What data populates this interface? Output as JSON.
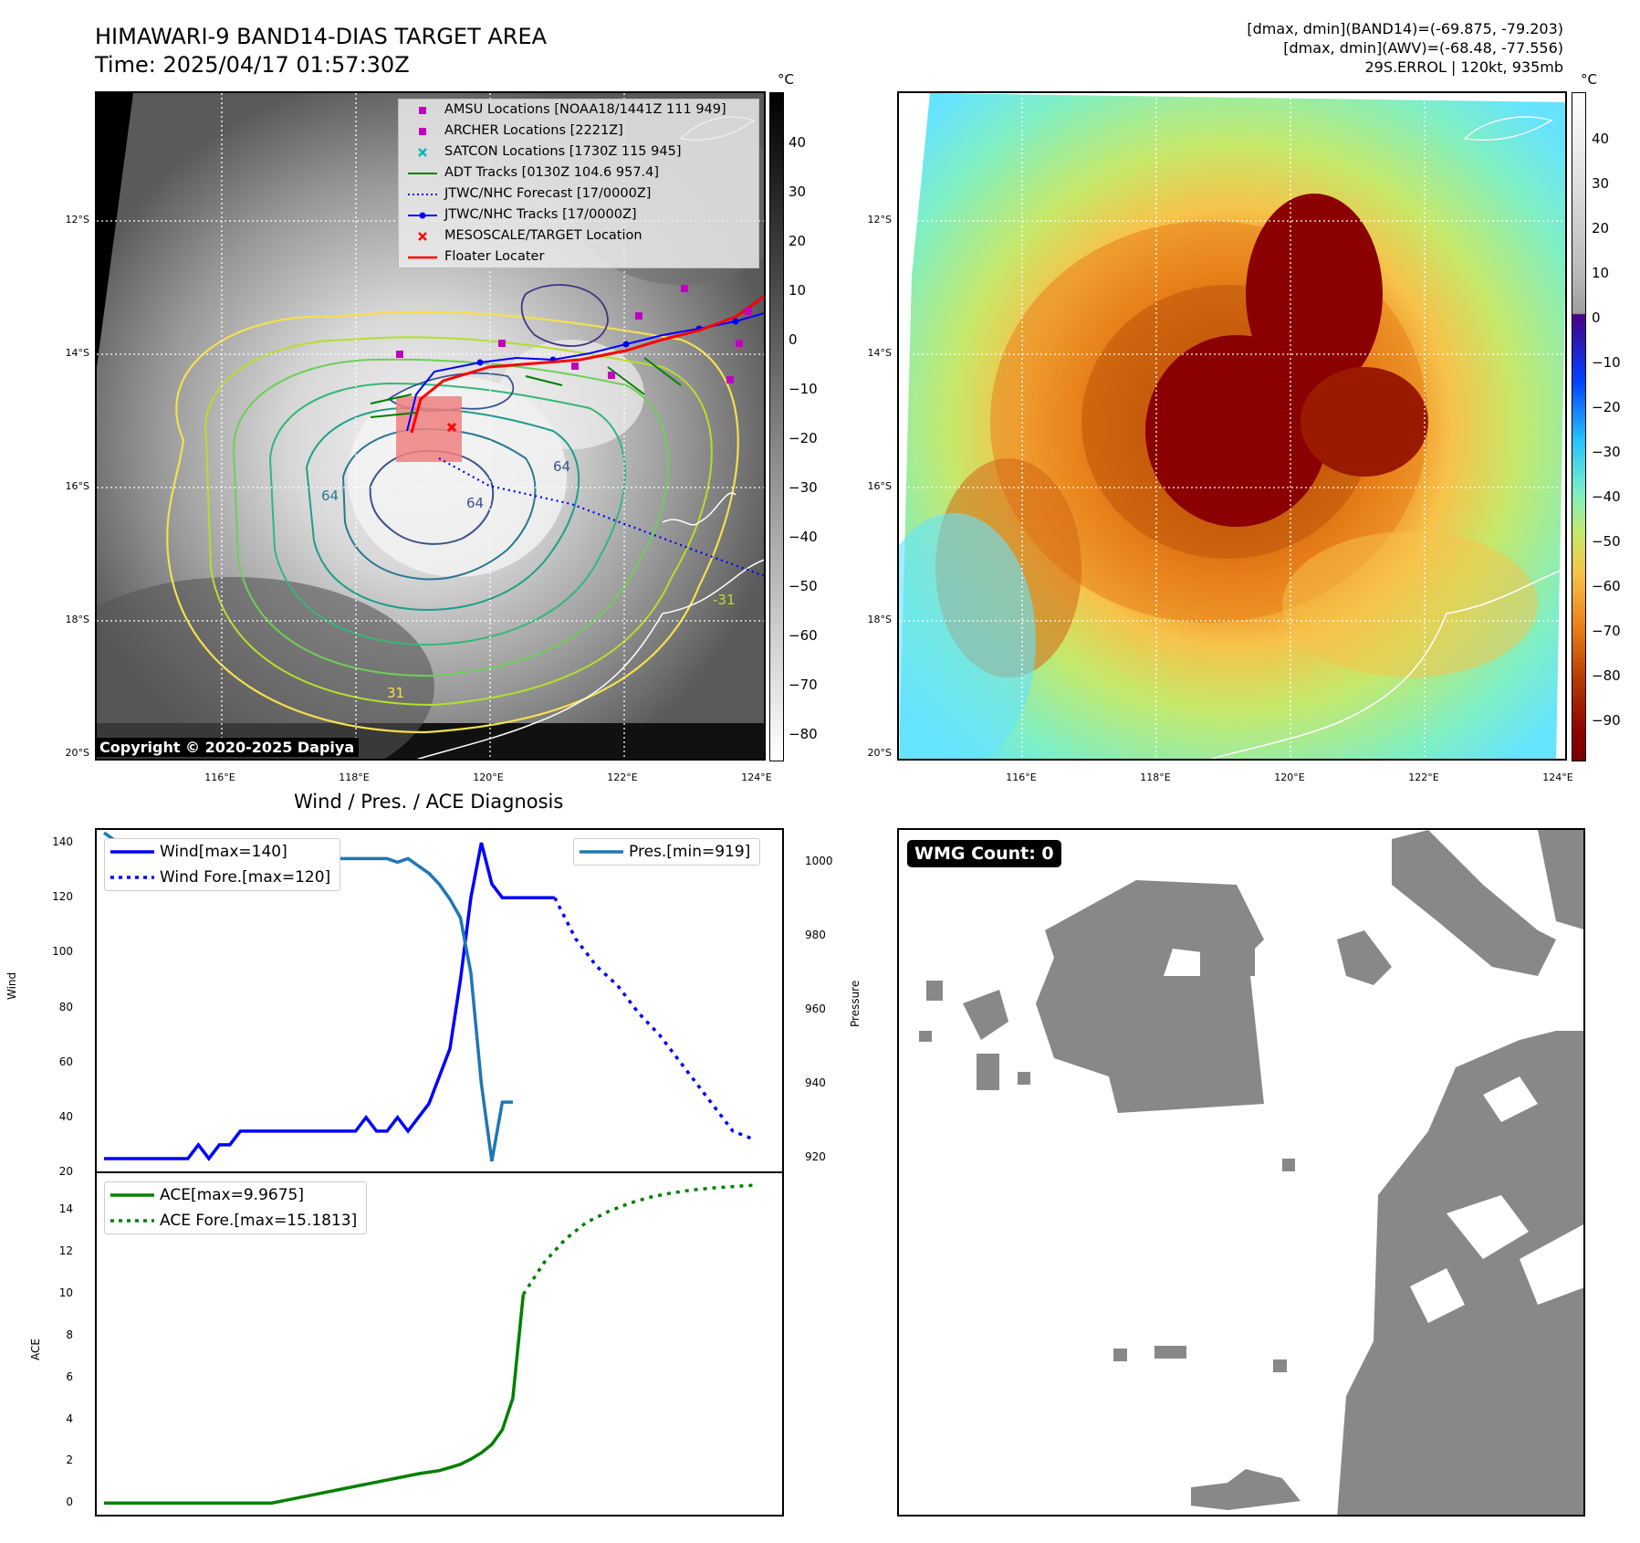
{
  "header": {
    "title": "HIMAWARI-9 BAND14-DIAS TARGET AREA",
    "time": "Time: 2025/04/17 01:57:30Z",
    "stats_band14": "[dmax, dmin](BAND14)=(-69.875, -79.203)",
    "stats_awv": "[dmax, dmin](AWV)=(-68.48, -77.556)",
    "storm": "29S.ERROL | 120kt, 935mb"
  },
  "map": {
    "lat_labels": [
      "12°S",
      "14°S",
      "16°S",
      "18°S",
      "20°S"
    ],
    "lon_labels": [
      "116°E",
      "118°E",
      "120°E",
      "122°E",
      "124°E"
    ],
    "copyright": "Copyright © 2020-2025 Dapiya",
    "contour_labels": [
      "64",
      "64",
      "64",
      "-31",
      "31"
    ],
    "legend": [
      {
        "label": "AMSU Locations [NOAA18/1441Z 111 949]",
        "marker": "square",
        "color": "#c000c0"
      },
      {
        "label": "ARCHER Locations [2221Z]",
        "marker": "square",
        "color": "#c000c0"
      },
      {
        "label": "SATCON Locations [1730Z 115 945]",
        "marker": "x",
        "color": "#00b5b5"
      },
      {
        "label": "ADT Tracks [0130Z 104.6 957.4]",
        "marker": "line",
        "color": "#008000"
      },
      {
        "label": "JTWC/NHC Forecast [17/0000Z]",
        "marker": "dotted",
        "color": "#0000ff"
      },
      {
        "label": "JTWC/NHC Tracks [17/0000Z]",
        "marker": "linedot",
        "color": "#0000ff"
      },
      {
        "label": "MESOSCALE/TARGET Location",
        "marker": "x",
        "color": "#ff0000"
      },
      {
        "label": "Floater Locater",
        "marker": "line",
        "color": "#ff0000"
      }
    ]
  },
  "colorbar_left": {
    "unit": "°C",
    "ticks": [
      "40",
      "30",
      "20",
      "10",
      "0",
      "−10",
      "−20",
      "−30",
      "−40",
      "−50",
      "−60",
      "−70",
      "−80"
    ]
  },
  "colorbar_right": {
    "unit": "°C",
    "ticks": [
      "40",
      "30",
      "20",
      "10",
      "0",
      "−10",
      "−20",
      "−30",
      "−40",
      "−50",
      "−60",
      "−70",
      "−80",
      "−90"
    ]
  },
  "wmg": {
    "label": "WMG Count: 0"
  },
  "chart_data": [
    {
      "type": "line",
      "title": "Wind / Pres. / ACE Diagnosis",
      "ylabel": "Wind",
      "ylabel2": "Pressure",
      "ylim": [
        20,
        145
      ],
      "ylim2": [
        916,
        1009
      ],
      "yticks": [
        20,
        40,
        60,
        80,
        100,
        120,
        140
      ],
      "yticks2": [
        920,
        940,
        960,
        980,
        1000
      ],
      "series": [
        {
          "name": "Wind[max=140]",
          "color": "#0000ff",
          "style": "solid",
          "x": [
            0,
            1,
            2,
            3,
            4,
            5,
            6,
            7,
            8,
            9,
            10,
            11,
            12,
            13,
            14,
            15,
            16,
            17,
            18,
            19,
            20,
            21,
            22,
            23,
            24,
            25,
            26,
            27,
            28,
            29,
            30,
            31,
            32,
            33,
            34,
            35,
            36,
            37,
            38,
            39,
            40,
            41,
            42,
            43
          ],
          "values": [
            25,
            25,
            25,
            25,
            25,
            25,
            25,
            25,
            25,
            30,
            25,
            30,
            30,
            35,
            35,
            35,
            35,
            35,
            35,
            35,
            35,
            35,
            35,
            35,
            35,
            40,
            35,
            35,
            40,
            35,
            40,
            45,
            55,
            65,
            90,
            120,
            140,
            125,
            120,
            120,
            120,
            120,
            120,
            120
          ]
        },
        {
          "name": "Wind Fore.[max=120]",
          "color": "#0000ff",
          "style": "dotted",
          "x": [
            43,
            45,
            47,
            49,
            51,
            53,
            55,
            57,
            58,
            59,
            60,
            62
          ],
          "values": [
            120,
            105,
            95,
            88,
            78,
            70,
            60,
            50,
            45,
            40,
            35,
            32
          ]
        },
        {
          "name": "Pres.[min=919]",
          "color": "#1f77b4",
          "style": "solid",
          "axis": "right",
          "x": [
            0,
            1,
            2,
            3,
            4,
            5,
            6,
            7,
            8,
            9,
            10,
            11,
            12,
            13,
            14,
            15,
            16,
            17,
            18,
            19,
            20,
            21,
            22,
            23,
            24,
            25,
            26,
            27,
            28,
            29,
            30,
            31,
            32,
            33,
            34,
            35,
            36,
            37,
            38,
            39
          ],
          "values": [
            1008,
            1006,
            1006,
            1005,
            1005,
            1003,
            1002,
            1002,
            1001,
            1001,
            1001,
            1001,
            1001,
            1001,
            1001,
            1001,
            1001,
            1001,
            1001,
            1001,
            1001,
            1001,
            1001,
            1001,
            1001,
            1001,
            1001,
            1001,
            1000,
            1001,
            999,
            997,
            994,
            990,
            985,
            970,
            940,
            919,
            935,
            935
          ]
        }
      ]
    },
    {
      "type": "line",
      "ylabel": "ACE",
      "ylim": [
        -0.6,
        15.8
      ],
      "yticks": [
        0,
        2,
        4,
        6,
        8,
        10,
        12,
        14
      ],
      "series": [
        {
          "name": "ACE[max=9.9675]",
          "color": "#008000",
          "style": "solid",
          "x": [
            0,
            5,
            10,
            14,
            16,
            18,
            20,
            22,
            24,
            26,
            28,
            30,
            32,
            33,
            34,
            35,
            36,
            37,
            38,
            39,
            40
          ],
          "values": [
            0,
            0,
            0,
            0,
            0,
            0.2,
            0.4,
            0.6,
            0.8,
            1.0,
            1.2,
            1.4,
            1.55,
            1.7,
            1.85,
            2.1,
            2.4,
            2.8,
            3.5,
            5.0,
            9.9675
          ]
        },
        {
          "name": "ACE Fore.[max=15.1813]",
          "color": "#008000",
          "style": "dotted",
          "x": [
            40,
            42,
            44,
            46,
            48,
            50,
            52,
            54,
            56,
            58,
            60,
            62
          ],
          "values": [
            9.9675,
            11.5,
            12.6,
            13.4,
            13.9,
            14.3,
            14.6,
            14.8,
            14.95,
            15.05,
            15.12,
            15.1813
          ]
        }
      ]
    }
  ]
}
